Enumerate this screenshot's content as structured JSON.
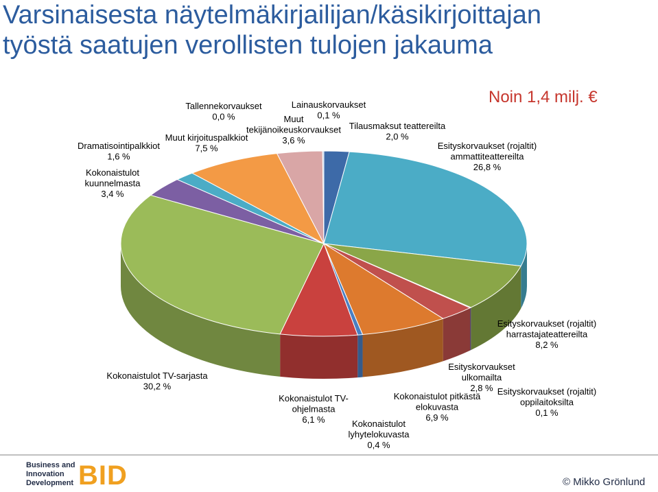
{
  "title_lines": [
    "Varsinaisesta näytelmäkirjailijan/käsikirjoittajan",
    "työstä saatujen verollisten tulojen jakauma"
  ],
  "subtitle": "Noin 1,4 milj. €",
  "footer": {
    "logo_lines": [
      "Business and",
      "Innovation",
      "Development"
    ],
    "logo_mark": "BID",
    "copyright": "© Mikko Grönlund"
  },
  "chart_data": {
    "type": "pie",
    "title": "",
    "slices": [
      {
        "value": 2.0,
        "value_label": "2,0 %",
        "label_lines": [
          "Tilausmaksut teattereilta"
        ],
        "color": "#3d6aa8"
      },
      {
        "value": 26.8,
        "value_label": "26,8 %",
        "label_lines": [
          "Esityskorvaukset (rojaltit)",
          "ammattiteattereilta"
        ],
        "color": "#4bacc6"
      },
      {
        "value": 8.2,
        "value_label": "8,2 %",
        "label_lines": [
          "Esityskorvaukset (rojaltit)",
          "harrastajateattereilta"
        ],
        "color": "#8aa648"
      },
      {
        "value": 0.1,
        "value_label": "0,1 %",
        "label_lines": [
          "Esityskorvaukset (rojaltit)",
          "oppilaitoksilta"
        ],
        "color": "#6b4f8c"
      },
      {
        "value": 2.8,
        "value_label": "2,8 %",
        "label_lines": [
          "Esityskorvaukset",
          "ulkomailta"
        ],
        "color": "#c0504d"
      },
      {
        "value": 6.9,
        "value_label": "6,9 %",
        "label_lines": [
          "Kokonaistulot pitkästä",
          "elokuvasta"
        ],
        "color": "#dd7a2e"
      },
      {
        "value": 0.4,
        "value_label": "0,4 %",
        "label_lines": [
          "Kokonaistulot",
          "lyhytelokuvasta"
        ],
        "color": "#4a7fc1"
      },
      {
        "value": 6.1,
        "value_label": "6,1 %",
        "label_lines": [
          "Kokonaistulot TV-",
          "ohjelmasta"
        ],
        "color": "#c9413e"
      },
      {
        "value": 30.2,
        "value_label": "30,2 %",
        "label_lines": [
          "Kokonaistulot TV-sarjasta"
        ],
        "color": "#9bbb59"
      },
      {
        "value": 3.4,
        "value_label": "3,4 %",
        "label_lines": [
          "Kokonaistulot",
          "kuunnelmasta"
        ],
        "color": "#7c5fa3"
      },
      {
        "value": 1.6,
        "value_label": "1,6 %",
        "label_lines": [
          "Dramatisointipalkkiot"
        ],
        "color": "#4bacc6"
      },
      {
        "value": 7.5,
        "value_label": "7,5 %",
        "label_lines": [
          "Muut kirjoituspalkkiot"
        ],
        "color": "#f39a45"
      },
      {
        "value": 3.6,
        "value_label": "3,6 %",
        "label_lines": [
          "Muut",
          "tekijänoikeuskorvaukset"
        ],
        "color": "#d9a6a6"
      },
      {
        "value": 0.0,
        "value_label": "0,0 %",
        "label_lines": [
          "Tallennekorvaukset"
        ],
        "color": "#a6a6a6"
      },
      {
        "value": 0.1,
        "value_label": "0,1 %",
        "label_lines": [
          "Lainauskorvaukset"
        ],
        "color": "#b0c7e6"
      }
    ],
    "legend": "none"
  }
}
